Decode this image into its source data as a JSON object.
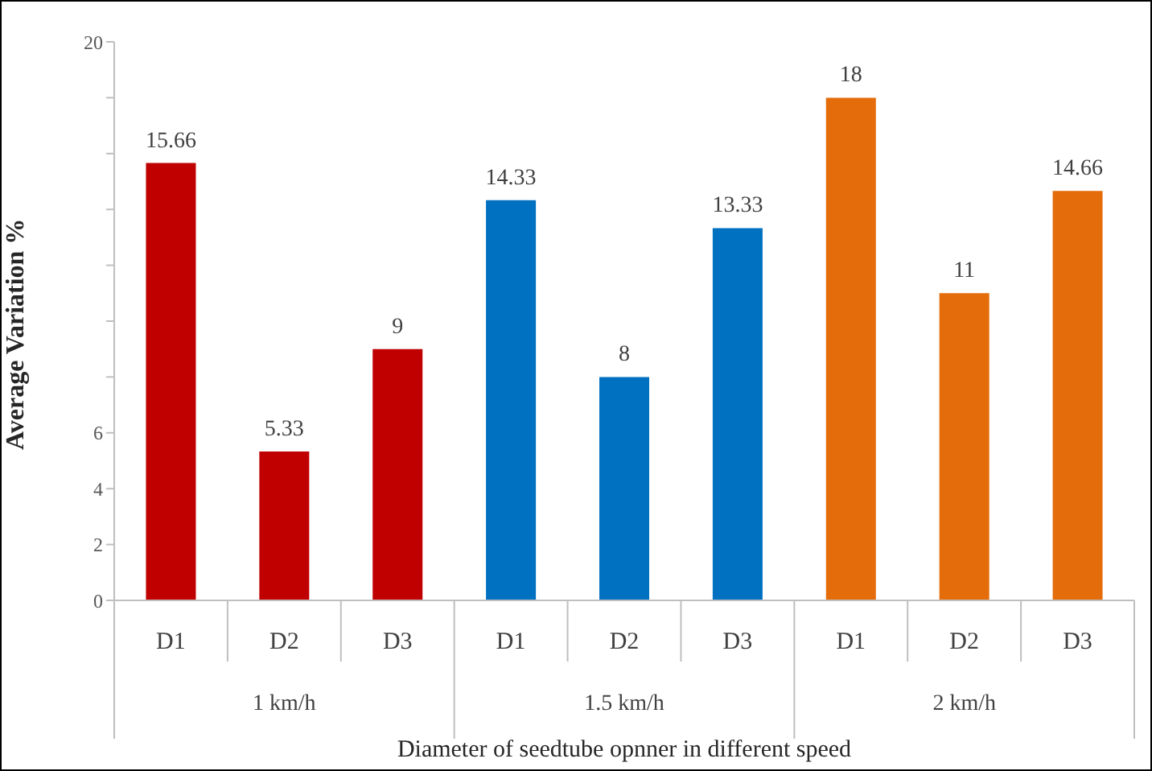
{
  "chart_data": {
    "type": "bar",
    "xlabel": "Diameter of seedtube opnner in different speed",
    "ylabel": "Average Variation %",
    "categories": [
      "D1",
      "D2",
      "D3",
      "D1",
      "D2",
      "D3",
      "D1",
      "D2",
      "D3"
    ],
    "values": [
      15.66,
      5.33,
      9,
      14.33,
      8,
      13.33,
      18,
      11,
      14.66
    ],
    "colors": [
      "#c00000",
      "#c00000",
      "#c00000",
      "#0070c0",
      "#0070c0",
      "#0070c0",
      "#e46c0a",
      "#e46c0a",
      "#e46c0a"
    ],
    "annotations": [
      "1 km/h",
      "1.5 km/h",
      "2 km/h"
    ],
    "ylim": [
      0,
      20
    ],
    "yticks": [
      0,
      2,
      4,
      6,
      {
        "value": 8,
        "label": null
      },
      {
        "value": 10,
        "label": null
      },
      {
        "value": 12,
        "label": null
      },
      {
        "value": 14,
        "label": null
      },
      {
        "value": 16,
        "label": null
      },
      {
        "value": 18,
        "label": null
      },
      20
    ],
    "data_labels": true,
    "grid": false,
    "legend": false
  }
}
